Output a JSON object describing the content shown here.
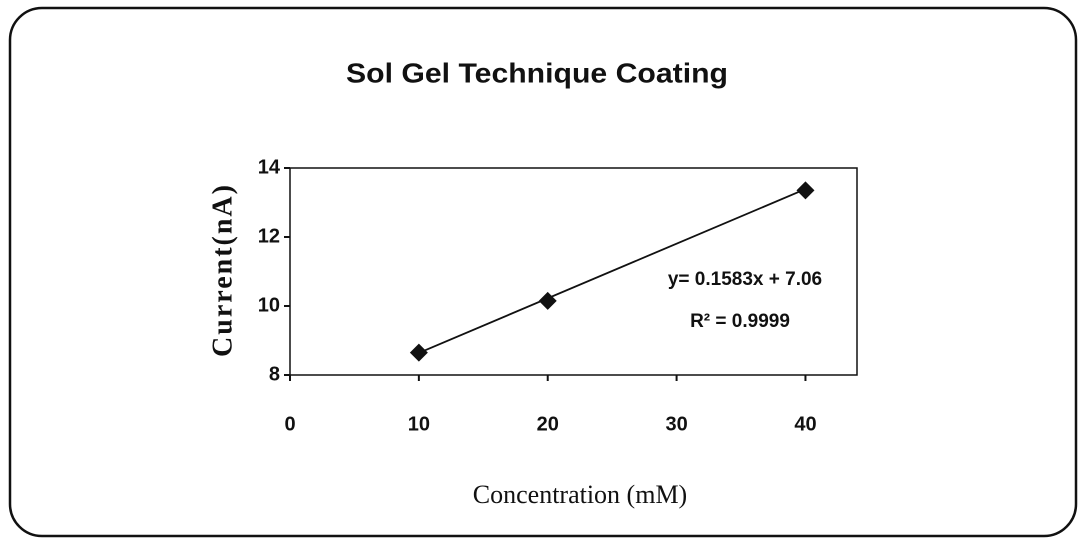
{
  "chart_data": {
    "type": "scatter",
    "title": "Sol Gel Technique Coating",
    "x_label": "Concentration (mM)",
    "y_label": "Current(nA)",
    "x": [
      10,
      20,
      40
    ],
    "values": [
      8.65,
      10.15,
      13.35
    ],
    "color": "#111111",
    "trendline": {
      "x": [
        10,
        40
      ],
      "values": [
        8.64,
        13.39
      ]
    },
    "annotations": [
      "y= 0.1583x + 7.06",
      "R² = 0.9999"
    ],
    "xlim": [
      0,
      44
    ],
    "xticks": [
      0,
      10,
      20,
      30,
      40
    ],
    "ylim": [
      8,
      14
    ],
    "yticks": [
      8,
      10,
      12,
      14
    ]
  }
}
